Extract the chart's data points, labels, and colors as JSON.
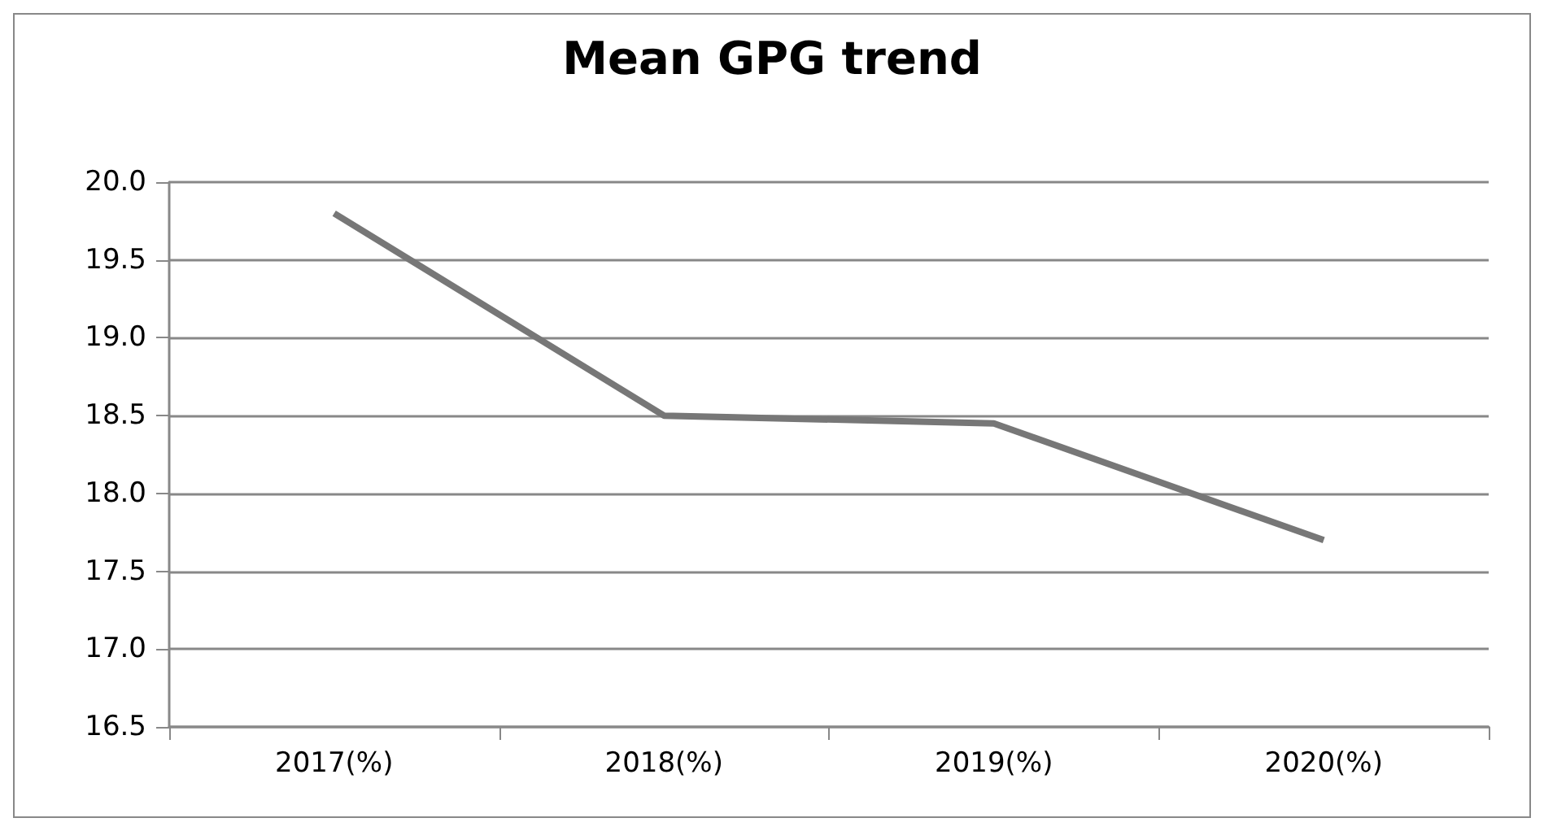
{
  "chart_data": {
    "type": "line",
    "title": "Mean GPG trend",
    "categories": [
      "2017(%)",
      "2018(%)",
      "2019(%)",
      "2020(%)"
    ],
    "series": [
      {
        "color": "#777777",
        "values": [
          19.8,
          18.5,
          18.45,
          17.7
        ]
      }
    ],
    "ylim": [
      16.5,
      20.0
    ],
    "yticks": [
      16.5,
      {
        "value": 17,
        "label": "17.0"
      },
      17.5,
      {
        "value": 18,
        "label": "18.0"
      },
      18.5,
      {
        "value": 19,
        "label": "19.0"
      },
      19.5,
      {
        "value": 20,
        "label": "20.0"
      }
    ],
    "grid": "y",
    "marker": "none"
  }
}
